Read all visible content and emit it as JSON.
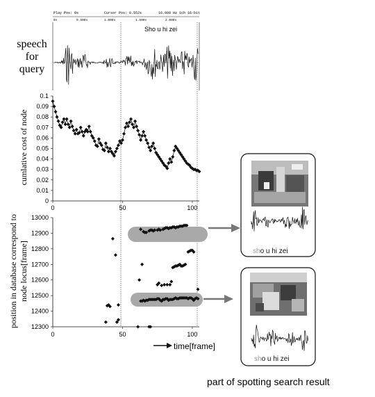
{
  "waveform_header": {
    "play_pos": "Play Pos: 0s",
    "cursor_pos": "Cursor Pos: 0.552s",
    "range": "16.000 Hz  1ch  16-bit",
    "t0": "0s",
    "t1": "0.500s",
    "t2": "1.000s",
    "t3": "1.500s",
    "t4": "2.000s"
  },
  "query_label_line1": "speech",
  "query_label_line2": "for",
  "query_label_line3": "query",
  "query_phrase": "Sho u hi zei",
  "cost_chart": {
    "type": "scatter",
    "ylabel": "cumlative cost of node",
    "y_ticks": [
      "0.1",
      "0.09",
      "0.08",
      "0.07",
      "0.06",
      "0.05",
      "0.04",
      "0.03",
      "0.02",
      "0.01",
      "0"
    ],
    "x_ticks": [
      "0",
      "50",
      "100"
    ],
    "ylim": [
      0,
      0.1
    ],
    "xlim": [
      0,
      105
    ],
    "x": [
      0,
      1,
      2,
      3,
      4,
      5,
      6,
      7,
      8,
      9,
      10,
      11,
      12,
      13,
      14,
      15,
      16,
      17,
      18,
      19,
      20,
      21,
      22,
      23,
      24,
      25,
      26,
      27,
      28,
      29,
      30,
      31,
      32,
      33,
      34,
      35,
      36,
      37,
      38,
      39,
      40,
      41,
      42,
      43,
      44,
      45,
      46,
      47,
      48,
      49,
      50,
      51,
      52,
      53,
      54,
      55,
      56,
      57,
      58,
      59,
      60,
      61,
      62,
      63,
      64,
      65,
      66,
      67,
      68,
      69,
      70,
      71,
      72,
      73,
      74,
      75,
      76,
      77,
      78,
      79,
      80,
      81,
      82,
      83,
      84,
      85,
      86,
      87,
      88,
      89,
      90,
      91,
      92,
      93,
      94,
      95,
      96,
      97,
      98,
      99,
      100,
      101,
      102,
      103,
      104,
      105
    ],
    "values": [
      0.095,
      0.09,
      0.085,
      0.08,
      0.076,
      0.072,
      0.07,
      0.075,
      0.078,
      0.073,
      0.078,
      0.073,
      0.07,
      0.076,
      0.071,
      0.067,
      0.064,
      0.068,
      0.064,
      0.065,
      0.07,
      0.066,
      0.062,
      0.066,
      0.068,
      0.066,
      0.071,
      0.066,
      0.062,
      0.06,
      0.057,
      0.053,
      0.052,
      0.059,
      0.055,
      0.053,
      0.049,
      0.048,
      0.055,
      0.051,
      0.047,
      0.05,
      0.047,
      0.045,
      0.043,
      0.047,
      0.05,
      0.053,
      0.057,
      0.055,
      0.058,
      0.064,
      0.07,
      0.074,
      0.071,
      0.075,
      0.078,
      0.073,
      0.07,
      0.076,
      0.071,
      0.067,
      0.063,
      0.058,
      0.062,
      0.066,
      0.062,
      0.058,
      0.055,
      0.051,
      0.048,
      0.052,
      0.055,
      0.05,
      0.046,
      0.044,
      0.042,
      0.04,
      0.038,
      0.036,
      0.034,
      0.033,
      0.031,
      0.036,
      0.04,
      0.037,
      0.042,
      0.048,
      0.052,
      0.05,
      0.048,
      0.046,
      0.044,
      0.042,
      0.04,
      0.038,
      0.036,
      0.035,
      0.034,
      0.032,
      0.031,
      0.03,
      0.03,
      0.029,
      0.029,
      0.028
    ]
  },
  "position_chart": {
    "type": "scatter",
    "ylabel_line1": "position in database correspond to",
    "ylabel_line2": "node locus[frame]",
    "xlabel": "time[frame]",
    "y_ticks": [
      "13000",
      "12900",
      "12800",
      "12700",
      "12600",
      "12500",
      "12400",
      "12300"
    ],
    "x_ticks": [
      "0",
      "50",
      "100"
    ],
    "ylim": [
      12300,
      13000
    ],
    "xlim": [
      0,
      105
    ],
    "points": [
      [
        38,
        12330
      ],
      [
        39,
        12435
      ],
      [
        40,
        12440
      ],
      [
        41,
        12430
      ],
      [
        43,
        12865
      ],
      [
        45,
        12760
      ],
      [
        46,
        12330
      ],
      [
        47,
        12345
      ],
      [
        47,
        12440
      ],
      [
        63,
        12925
      ],
      [
        64,
        12700
      ],
      [
        65,
        12910
      ],
      [
        66,
        12905
      ],
      [
        67,
        12905
      ],
      [
        69,
        12915
      ],
      [
        70,
        12920
      ],
      [
        71,
        12920
      ],
      [
        72,
        12915
      ],
      [
        73,
        12920
      ],
      [
        75,
        12920
      ],
      [
        76,
        12925
      ],
      [
        77,
        12920
      ],
      [
        79,
        12925
      ],
      [
        80,
        12930
      ],
      [
        81,
        12935
      ],
      [
        82,
        12935
      ],
      [
        83,
        12930
      ],
      [
        84,
        12935
      ],
      [
        85,
        12935
      ],
      [
        86,
        12940
      ],
      [
        87,
        12940
      ],
      [
        88,
        12935
      ],
      [
        89,
        12940
      ],
      [
        90,
        12940
      ],
      [
        91,
        12945
      ],
      [
        92,
        12945
      ],
      [
        93,
        12945
      ],
      [
        94,
        12950
      ],
      [
        95,
        12950
      ],
      [
        96,
        12950
      ],
      [
        62,
        12600
      ],
      [
        63,
        12465
      ],
      [
        64,
        12465
      ],
      [
        65,
        12470
      ],
      [
        66,
        12465
      ],
      [
        67,
        12470
      ],
      [
        68,
        12470
      ],
      [
        69,
        12475
      ],
      [
        70,
        12475
      ],
      [
        71,
        12475
      ],
      [
        72,
        12475
      ],
      [
        73,
        12475
      ],
      [
        74,
        12475
      ],
      [
        75,
        12480
      ],
      [
        76,
        12480
      ],
      [
        77,
        12470
      ],
      [
        78,
        12465
      ],
      [
        79,
        12475
      ],
      [
        80,
        12475
      ],
      [
        81,
        12480
      ],
      [
        82,
        12480
      ],
      [
        83,
        12470
      ],
      [
        84,
        12475
      ],
      [
        85,
        12475
      ],
      [
        86,
        12475
      ],
      [
        87,
        12480
      ],
      [
        88,
        12485
      ],
      [
        89,
        12480
      ],
      [
        90,
        12480
      ],
      [
        91,
        12485
      ],
      [
        92,
        12485
      ],
      [
        93,
        12485
      ],
      [
        94,
        12485
      ],
      [
        95,
        12485
      ],
      [
        96,
        12485
      ],
      [
        97,
        12480
      ],
      [
        98,
        12485
      ],
      [
        99,
        12485
      ],
      [
        100,
        12480
      ],
      [
        61,
        12300
      ],
      [
        69,
        12300
      ],
      [
        70,
        12300
      ],
      [
        75,
        12570
      ],
      [
        76,
        12580
      ],
      [
        78,
        12565
      ],
      [
        80,
        12570
      ],
      [
        82,
        12570
      ],
      [
        84,
        12570
      ],
      [
        85,
        12590
      ],
      [
        86,
        12680
      ],
      [
        87,
        12685
      ],
      [
        88,
        12690
      ],
      [
        89,
        12690
      ],
      [
        90,
        12695
      ],
      [
        91,
        12700
      ],
      [
        92,
        12690
      ],
      [
        93,
        12690
      ],
      [
        94,
        12695
      ],
      [
        95,
        12700
      ],
      [
        97,
        12780
      ],
      [
        98,
        12785
      ],
      [
        99,
        12790
      ],
      [
        100,
        12790
      ],
      [
        101,
        12780
      ],
      [
        101,
        12470
      ],
      [
        102,
        12480
      ],
      [
        103,
        12485
      ],
      [
        104,
        12480
      ],
      [
        104,
        12540
      ]
    ]
  },
  "result1_phrase_gray": "sh",
  "result1_phrase_rest": "o u hi zei",
  "result2_phrase_gray": "sh",
  "result2_phrase_rest": "o u hi zei",
  "caption": "part of spotting search result"
}
